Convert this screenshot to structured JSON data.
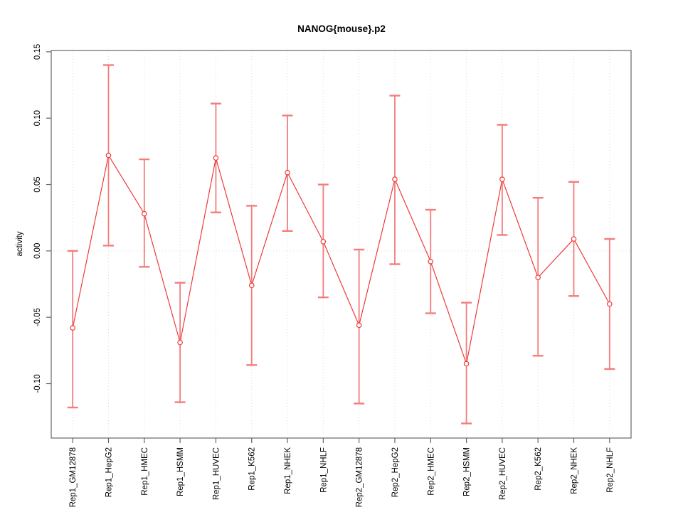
{
  "title": "NANOG{mouse}.p2",
  "chart_data": {
    "type": "line",
    "title": "NANOG{mouse}.p2",
    "xlabel": "",
    "ylabel": "activity",
    "legend": "none",
    "grid": "dotted vertical line at each category; dotted horizontal line at y=0",
    "categories": [
      "Rep1_GM12878",
      "Rep1_HepG2",
      "Rep1_HMEC",
      "Rep1_HSMM",
      "Rep1_HUVEC",
      "Rep1_K562",
      "Rep1_NHEK",
      "Rep1_NHLF",
      "Rep2_GM12878",
      "Rep2_HepG2",
      "Rep2_HMEC",
      "Rep2_HSMM",
      "Rep2_HUVEC",
      "Rep2_K562",
      "Rep2_NHEK",
      "Rep2_NHLF"
    ],
    "series": [
      {
        "name": "activity",
        "values": [
          -0.058,
          0.072,
          0.028,
          -0.069,
          0.07,
          -0.026,
          0.059,
          0.007,
          -0.056,
          0.054,
          -0.008,
          -0.085,
          0.054,
          -0.02,
          0.009,
          -0.04
        ],
        "error_low": [
          -0.118,
          0.004,
          -0.012,
          -0.114,
          0.029,
          -0.086,
          0.015,
          -0.035,
          -0.115,
          -0.01,
          -0.047,
          -0.13,
          0.012,
          -0.079,
          -0.034,
          -0.089
        ],
        "error_high": [
          0.0,
          0.14,
          0.069,
          -0.024,
          0.111,
          0.034,
          0.102,
          0.05,
          0.001,
          0.117,
          0.031,
          -0.039,
          0.095,
          0.04,
          0.052,
          0.009
        ]
      }
    ],
    "ylim": [
      -0.141,
      0.151
    ],
    "yticks": [
      -0.1,
      -0.05,
      0.0,
      0.05,
      0.1,
      0.15
    ],
    "colors": {
      "series_line": "#ee3a3a",
      "point_stroke": "#ee3a3a",
      "error_bar": "#f47c7c",
      "axis": "#666666",
      "grid_line": "#dedede",
      "text": "#000000",
      "background": "#ffffff"
    }
  }
}
